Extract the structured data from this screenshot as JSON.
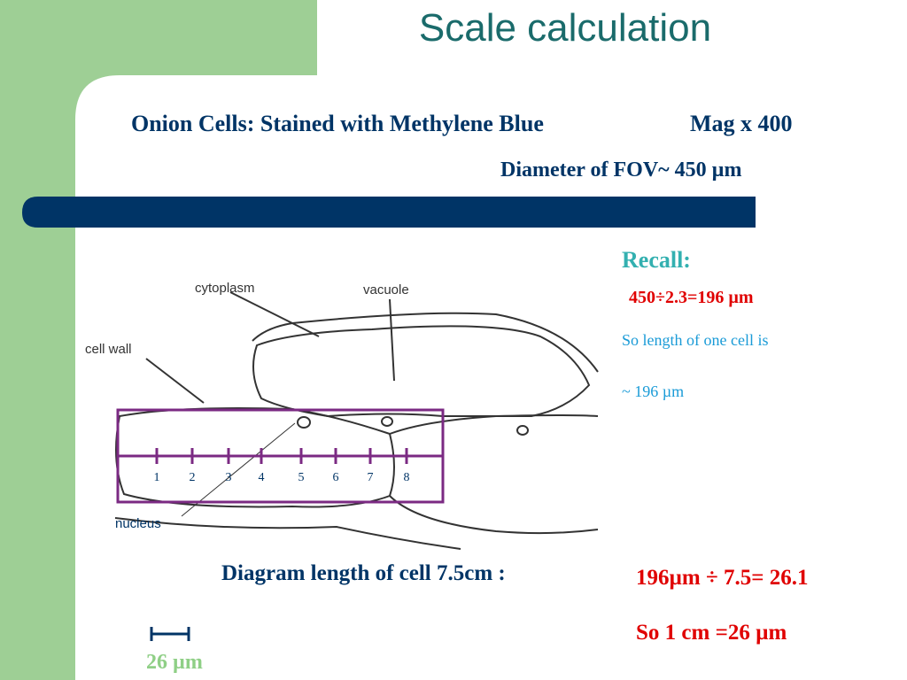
{
  "header": {
    "title": "Scale calculation",
    "subtitle": "Onion Cells: Stained with Methylene Blue",
    "magnification": "Mag x 400",
    "fov": "Diameter of FOV~ 450 µm"
  },
  "recall": {
    "heading": "Recall:",
    "calculation": "450÷2.3=196 µm",
    "line1": "So length of one cell is",
    "line2": "~  196 µm"
  },
  "diagram": {
    "labels": {
      "cytoplasm": "cytoplasm",
      "vacuole": "vacuole",
      "cell_wall": "cell wall",
      "nucleus": "nucleus"
    },
    "ruler": [
      "1",
      "2",
      "3",
      "4",
      "5",
      "6",
      "7",
      "8"
    ]
  },
  "footer": {
    "diagram_length": "Diagram length of cell 7.5cm :",
    "division": "196µm ÷ 7.5= 26.1",
    "result": "So 1 cm =26 µm",
    "scale_bar": "26 µm"
  }
}
